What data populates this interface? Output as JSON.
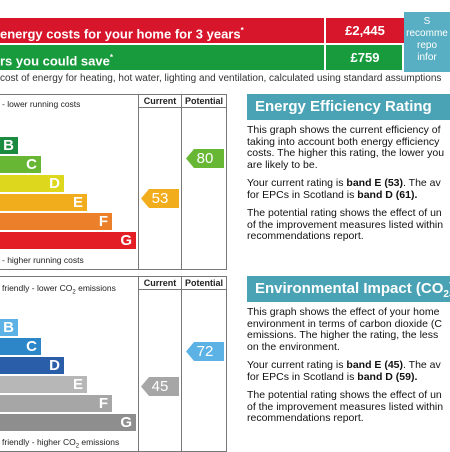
{
  "costs": [
    {
      "label": "energy costs for your home for 3 years",
      "sup": "*",
      "value": "£2,445"
    },
    {
      "label": "rs you could save",
      "sup": "*",
      "value": "£759"
    }
  ],
  "side_box": [
    "S",
    "recomme",
    "repo",
    "infor"
  ],
  "cost_note": "cost of energy for heating, hot water, lighting and ventilation, calculated using standard assumptions",
  "colors": {
    "red": "#d7152b",
    "green": "#189b3d",
    "teal": "#4aa3b5",
    "arrow_grey": "#b7b7b7"
  },
  "energy": {
    "top_text": "- lower running costs",
    "bottom_text": "- higher running costs",
    "current_header": "Current",
    "potential_header": "Potential",
    "bands": [
      {
        "letter": "B",
        "color": "#1b8b3f"
      },
      {
        "letter": "C",
        "color": "#67b735"
      },
      {
        "letter": "D",
        "color": "#ddd71d"
      },
      {
        "letter": "E",
        "color": "#f2ad1d"
      },
      {
        "letter": "F",
        "color": "#ec7f2a"
      },
      {
        "letter": "G",
        "color": "#e31e24"
      }
    ],
    "current": "53",
    "potential": "80",
    "current_color": "#f2ad1d",
    "potential_color": "#67b735"
  },
  "environmental": {
    "top_text": "friendly - lower CO",
    "top_sub": "2",
    "top_text_end": " emissions",
    "bottom_text": "friendly - higher CO",
    "bottom_sub": "2",
    "bottom_text_end": " emissions",
    "current_header": "Current",
    "potential_header": "Potential",
    "bands": [
      {
        "letter": "B",
        "color": "#5cb2e4"
      },
      {
        "letter": "C",
        "color": "#2d86c7"
      },
      {
        "letter": "D",
        "color": "#2a5ea8"
      },
      {
        "letter": "E",
        "color": "#b7b7b7"
      },
      {
        "letter": "F",
        "color": "#a6a6a6"
      },
      {
        "letter": "G",
        "color": "#8e8e8e"
      }
    ],
    "current": "45",
    "potential": "72",
    "current_color": "#a6a6a6",
    "potential_color": "#5cb2e4"
  },
  "eer_panel": {
    "title": "Energy Efficiency Rating",
    "p1": "This graph shows the current efficiency of taking into account both energy efficiency costs. The higher this rating, the lower you are likely to be.",
    "p2_a": "Your current rating is ",
    "p2_b": "band E (53)",
    "p2_c": ". The av for EPCs in Scotland is ",
    "p2_d": "band D (61).",
    "p3": "The potential rating shows the effect of un of the improvement measures listed within recommendations report."
  },
  "eir_panel": {
    "title": "Environmental Impact (CO",
    "title_sub": "2",
    "title_end": ")",
    "p1": "This graph shows the effect of your home environment in terms of carbon dioxide (C emissions. The higher the rating, the less on the environment.",
    "p2_a": "Your current rating is ",
    "p2_b": "band E (45)",
    "p2_c": ". The av for EPCs in Scotland is ",
    "p2_d": "band D (59).",
    "p3": "The potential rating shows the effect of un of the improvement measures listed within recommendations report."
  }
}
